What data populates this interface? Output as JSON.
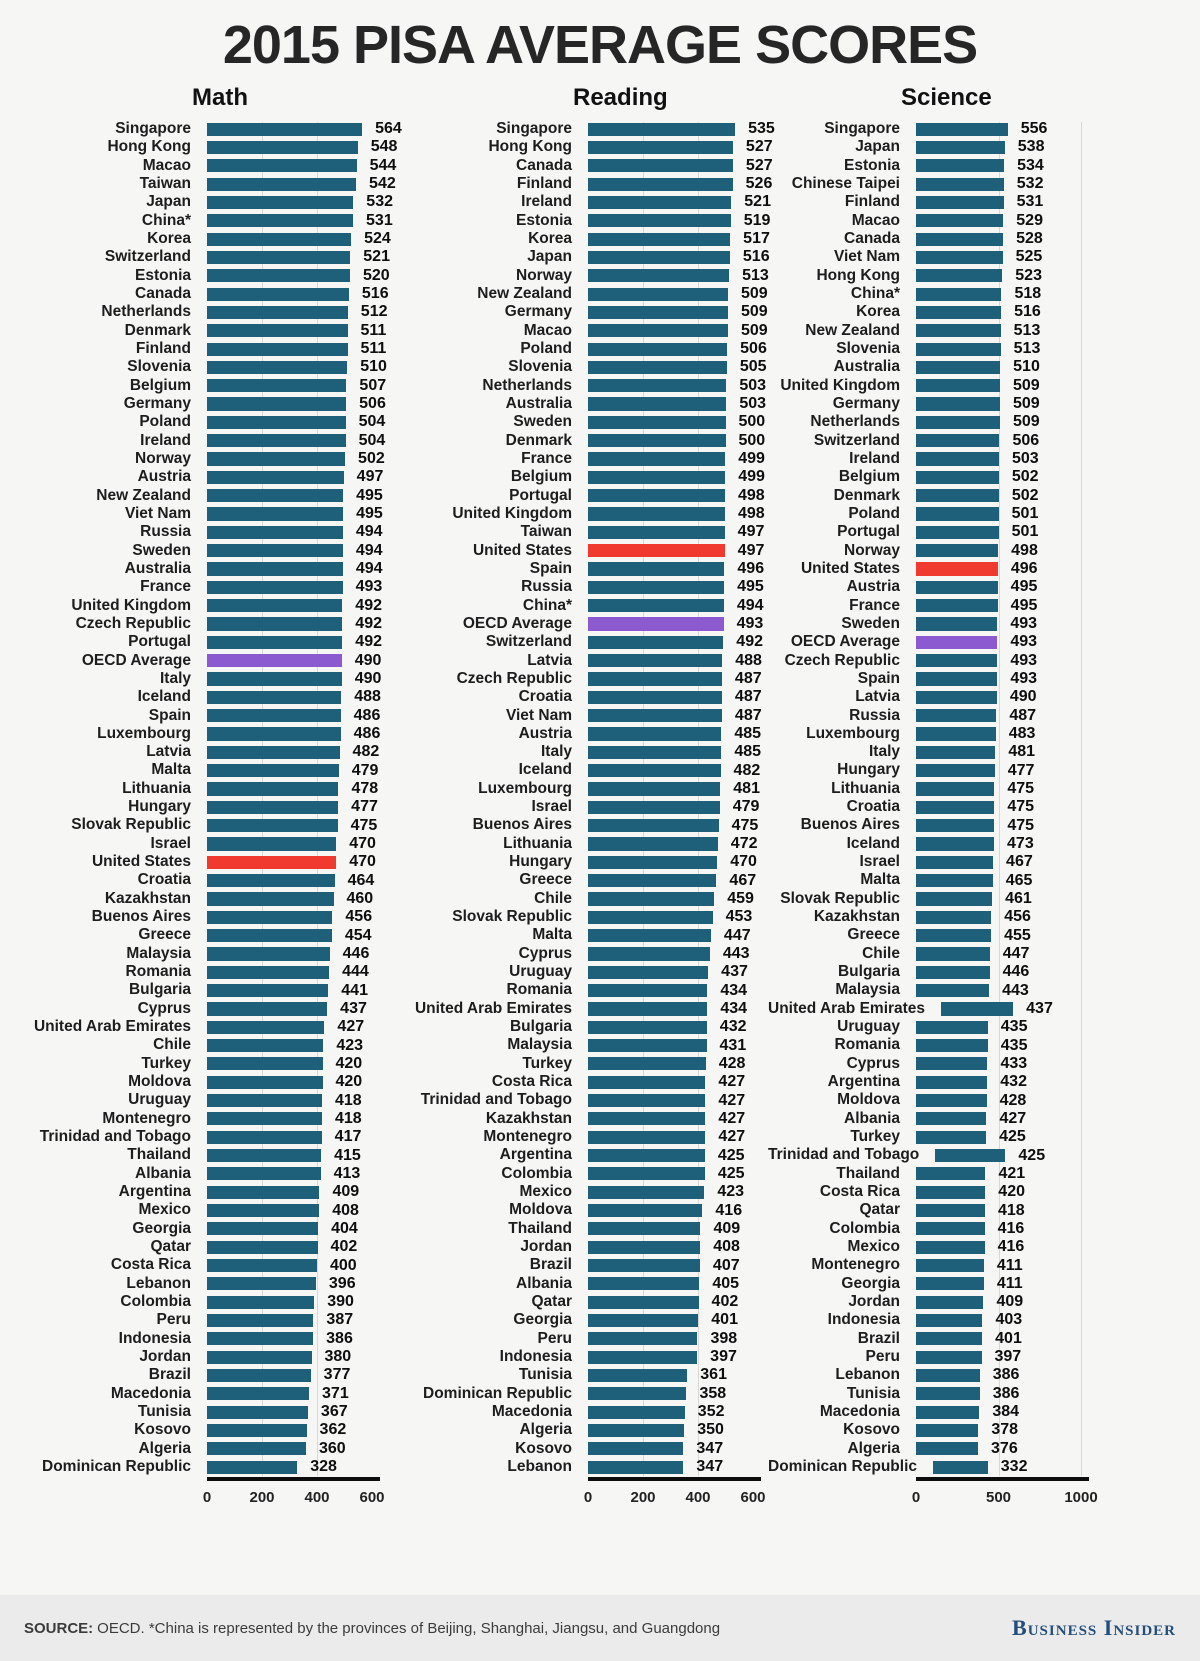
{
  "title": "2015 PISA AVERAGE SCORES",
  "footer": {
    "source_label": "SOURCE:",
    "source_text": "OECD. *China is represented by the provinces of Beijing, Shanghai, Jiangsu, and Guangdong",
    "brand": "Business Insider"
  },
  "colors": {
    "bar": "#1e5f7a",
    "highlight_us": "#f03a30",
    "highlight_oecd": "#8b5ad1",
    "background": "#f6f6f4",
    "grid": "#d8d8d8",
    "baseline": "#0d0d0d",
    "footer_bg": "#ebebeb",
    "brand_navy": "#234e79"
  },
  "chart_data": [
    {
      "type": "bar",
      "title": "Math",
      "orientation": "horizontal",
      "xlim": [
        0,
        600
      ],
      "ticks": [
        0,
        200,
        400,
        600
      ],
      "gridlines": [
        200,
        400
      ],
      "highlight_red": "United States",
      "highlight_purple": "OECD Average",
      "categories": [
        "Singapore",
        "Hong Kong",
        "Macao",
        "Taiwan",
        "Japan",
        "China*",
        "Korea",
        "Switzerland",
        "Estonia",
        "Canada",
        "Netherlands",
        "Denmark",
        "Finland",
        "Slovenia",
        "Belgium",
        "Germany",
        "Poland",
        "Ireland",
        "Norway",
        "Austria",
        "New Zealand",
        "Viet Nam",
        "Russia",
        "Sweden",
        "Australia",
        "France",
        "United Kingdom",
        "Czech Republic",
        "Portugal",
        "OECD Average",
        "Italy",
        "Iceland",
        "Spain",
        "Luxembourg",
        "Latvia",
        "Malta",
        "Lithuania",
        "Hungary",
        "Slovak Republic",
        "Israel",
        "United States",
        "Croatia",
        "Kazakhstan",
        "Buenos Aires",
        "Greece",
        "Malaysia",
        "Romania",
        "Bulgaria",
        "Cyprus",
        "United Arab Emirates",
        "Chile",
        "Turkey",
        "Moldova",
        "Uruguay",
        "Montenegro",
        "Trinidad and Tobago",
        "Thailand",
        "Albania",
        "Argentina",
        "Mexico",
        "Georgia",
        "Qatar",
        "Costa Rica",
        "Lebanon",
        "Colombia",
        "Peru",
        "Indonesia",
        "Jordan",
        "Brazil",
        "Macedonia",
        "Tunisia",
        "Kosovo",
        "Algeria",
        "Dominican Republic"
      ],
      "values": [
        564,
        548,
        544,
        542,
        532,
        531,
        524,
        521,
        520,
        516,
        512,
        511,
        511,
        510,
        507,
        506,
        504,
        504,
        502,
        497,
        495,
        495,
        494,
        494,
        494,
        493,
        492,
        492,
        492,
        490,
        490,
        488,
        486,
        486,
        482,
        479,
        478,
        477,
        475,
        470,
        470,
        464,
        460,
        456,
        454,
        446,
        444,
        441,
        437,
        427,
        423,
        420,
        420,
        418,
        418,
        417,
        415,
        413,
        409,
        408,
        404,
        402,
        400,
        396,
        390,
        387,
        386,
        380,
        377,
        371,
        367,
        362,
        360,
        328
      ]
    },
    {
      "type": "bar",
      "title": "Reading",
      "orientation": "horizontal",
      "xlim": [
        0,
        600
      ],
      "ticks": [
        0,
        200,
        400,
        600
      ],
      "gridlines": [
        200,
        400
      ],
      "highlight_red": "United States",
      "highlight_purple": "OECD Average",
      "categories": [
        "Singapore",
        "Hong Kong",
        "Canada",
        "Finland",
        "Ireland",
        "Estonia",
        "Korea",
        "Japan",
        "Norway",
        "New Zealand",
        "Germany",
        "Macao",
        "Poland",
        "Slovenia",
        "Netherlands",
        "Australia",
        "Sweden",
        "Denmark",
        "France",
        "Belgium",
        "Portugal",
        "United Kingdom",
        "Taiwan",
        "United States",
        "Spain",
        "Russia",
        "China*",
        "OECD Average",
        "Switzerland",
        "Latvia",
        "Czech Republic",
        "Croatia",
        "Viet Nam",
        "Austria",
        "Italy",
        "Iceland",
        "Luxembourg",
        "Israel",
        "Buenos Aires",
        "Lithuania",
        "Hungary",
        "Greece",
        "Chile",
        "Slovak Republic",
        "Malta",
        "Cyprus",
        "Uruguay",
        "Romania",
        "United Arab Emirates",
        "Bulgaria",
        "Malaysia",
        "Turkey",
        "Costa Rica",
        "Trinidad and Tobago",
        "Kazakhstan",
        "Montenegro",
        "Argentina",
        "Colombia",
        "Mexico",
        "Moldova",
        "Thailand",
        "Jordan",
        "Brazil",
        "Albania",
        "Qatar",
        "Georgia",
        "Peru",
        "Indonesia",
        "Tunisia",
        "Dominican Republic",
        "Macedonia",
        "Algeria",
        "Kosovo",
        "Lebanon"
      ],
      "values": [
        535,
        527,
        527,
        526,
        521,
        519,
        517,
        516,
        513,
        509,
        509,
        509,
        506,
        505,
        503,
        503,
        500,
        500,
        499,
        499,
        498,
        498,
        497,
        497,
        496,
        495,
        494,
        493,
        492,
        488,
        487,
        487,
        487,
        485,
        485,
        482,
        481,
        479,
        475,
        472,
        470,
        467,
        459,
        453,
        447,
        443,
        437,
        434,
        434,
        432,
        431,
        428,
        427,
        427,
        427,
        427,
        425,
        425,
        423,
        416,
        409,
        408,
        407,
        405,
        402,
        401,
        398,
        397,
        361,
        358,
        352,
        350,
        347,
        347
      ]
    },
    {
      "type": "bar",
      "title": "Science",
      "orientation": "horizontal",
      "xlim": [
        0,
        1000
      ],
      "ticks": [
        0,
        500,
        1000
      ],
      "gridlines": [
        500,
        1000
      ],
      "highlight_red": "United States",
      "highlight_purple": "OECD Average",
      "categories": [
        "Singapore",
        "Japan",
        "Estonia",
        "Chinese Taipei",
        "Finland",
        "Macao",
        "Canada",
        "Viet Nam",
        "Hong Kong",
        "China*",
        "Korea",
        "New Zealand",
        "Slovenia",
        "Australia",
        "United Kingdom",
        "Germany",
        "Netherlands",
        "Switzerland",
        "Ireland",
        "Belgium",
        "Denmark",
        "Poland",
        "Portugal",
        "Norway",
        "United States",
        "Austria",
        "France",
        "Sweden",
        "OECD Average",
        "Czech Republic",
        "Spain",
        "Latvia",
        "Russia",
        "Luxembourg",
        "Italy",
        "Hungary",
        "Lithuania",
        "Croatia",
        "Buenos Aires",
        "Iceland",
        "Israel",
        "Malta",
        "Slovak Republic",
        "Kazakhstan",
        "Greece",
        "Chile",
        "Bulgaria",
        "Malaysia",
        "United Arab Emirates",
        "Uruguay",
        "Romania",
        "Cyprus",
        "Argentina",
        "Moldova",
        "Albania",
        "Turkey",
        "Trinidad and Tobago",
        "Thailand",
        "Costa Rica",
        "Qatar",
        "Colombia",
        "Mexico",
        "Montenegro",
        "Georgia",
        "Jordan",
        "Indonesia",
        "Brazil",
        "Peru",
        "Lebanon",
        "Tunisia",
        "Macedonia",
        "Kosovo",
        "Algeria",
        "Dominican Republic"
      ],
      "values": [
        556,
        538,
        534,
        532,
        531,
        529,
        528,
        525,
        523,
        518,
        516,
        513,
        513,
        510,
        509,
        509,
        509,
        506,
        503,
        502,
        502,
        501,
        501,
        498,
        496,
        495,
        495,
        493,
        493,
        493,
        493,
        490,
        487,
        483,
        481,
        477,
        475,
        475,
        475,
        473,
        467,
        465,
        461,
        456,
        455,
        447,
        446,
        443,
        437,
        435,
        435,
        433,
        432,
        428,
        427,
        425,
        425,
        421,
        420,
        418,
        416,
        416,
        411,
        411,
        409,
        403,
        401,
        397,
        386,
        386,
        384,
        378,
        376,
        332
      ]
    }
  ]
}
